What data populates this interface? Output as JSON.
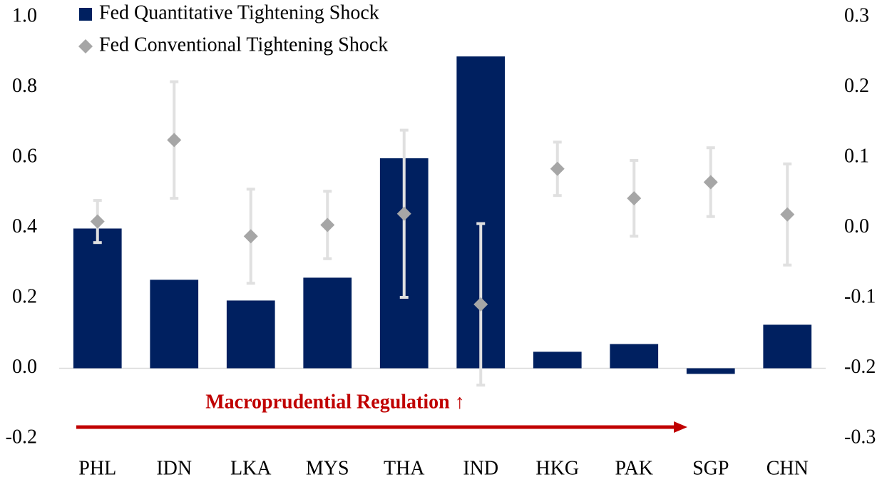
{
  "chart_data": {
    "type": "bar",
    "categories": [
      "PHL",
      "IDN",
      "LKA",
      "MYS",
      "THA",
      "IND",
      "HKG",
      "PAK",
      "SGP",
      "CHN"
    ],
    "series": [
      {
        "name": "Fed Quantitative Tightening Shock",
        "type": "bar",
        "axis": "y",
        "color": "#002060",
        "values": [
          0.398,
          0.252,
          0.193,
          0.258,
          0.598,
          0.888,
          0.047,
          0.069,
          -0.016,
          0.124
        ]
      },
      {
        "name": "Fed Conventional Tightening Shock",
        "type": "scatter",
        "axis": "y2",
        "color": "#a6a6a6",
        "error_color": "#e0e0e0",
        "values": [
          0.009,
          0.125,
          -0.012,
          0.004,
          0.02,
          -0.109,
          0.084,
          0.042,
          0.065,
          0.019
        ],
        "errors": [
          0.03,
          0.083,
          0.067,
          0.048,
          0.119,
          0.115,
          0.038,
          0.054,
          0.049,
          0.072
        ]
      }
    ],
    "ylim": [
      -0.2,
      1.0
    ],
    "yticks": [
      -0.2,
      {
        "value": 0,
        "label": "0.0"
      },
      0.2,
      0.4,
      0.6,
      0.8,
      {
        "value": 1,
        "label": "1.0"
      }
    ],
    "y2lim": [
      -0.3,
      0.3
    ],
    "y2ticks": [
      -0.3,
      -0.2,
      -0.1,
      {
        "value": 0,
        "label": "0.0"
      },
      0.1,
      0.2,
      0.3
    ],
    "annotation": "Macroprudential Regulation ↑",
    "annotation_color": "#c00000",
    "legend": "upper-left"
  }
}
